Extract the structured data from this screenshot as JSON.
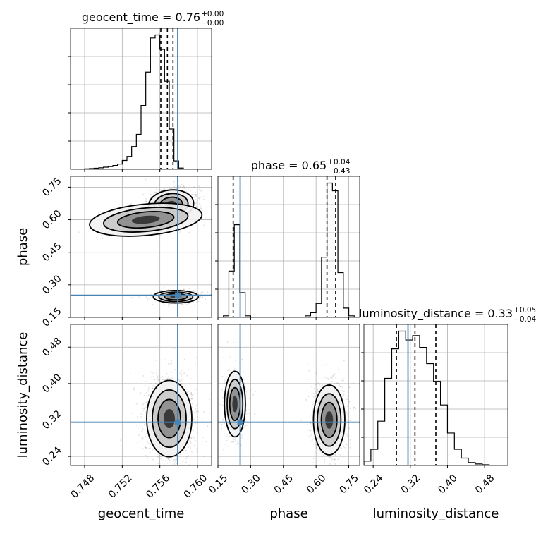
{
  "chart_data": {
    "type": "corner",
    "parameters": [
      "geocent_time",
      "phase",
      "luminosity_distance"
    ],
    "axes": {
      "geocent_time": {
        "label": "geocent_time",
        "range": [
          0.7465,
          0.7615
        ],
        "ticks": [
          0.748,
          0.752,
          0.756,
          0.76
        ],
        "tick_labels": [
          "0.748",
          "0.752",
          "0.756",
          "0.760"
        ]
      },
      "phase": {
        "label": "phase",
        "range": [
          0.15,
          0.8
        ],
        "ticks": [
          0.15,
          0.3,
          0.45,
          0.6,
          0.75
        ],
        "tick_labels": [
          "0.15",
          "0.30",
          "0.45",
          "0.60",
          "0.75"
        ]
      },
      "luminosity_distance": {
        "label": "luminosity_distance",
        "range": [
          0.22,
          0.53
        ],
        "ticks": [
          0.24,
          0.32,
          0.4,
          0.48
        ],
        "tick_labels": [
          "0.24",
          "0.32",
          "0.40",
          "0.48"
        ]
      }
    },
    "titles": [
      {
        "param": "geocent_time",
        "prefix": "geocent_time = 0.76",
        "plus": "+0.00",
        "minus": "−0.00"
      },
      {
        "param": "phase",
        "prefix": "phase = 0.65",
        "plus": "+0.04",
        "minus": "−0.43"
      },
      {
        "param": "luminosity_distance",
        "prefix": "luminosity_distance = 0.33",
        "plus": "+0.05",
        "minus": "−0.04"
      }
    ],
    "truths": {
      "geocent_time": 0.7579,
      "phase": 0.252,
      "luminosity_distance": 0.315
    },
    "quantiles": {
      "geocent_time": [
        0.7561,
        0.7568,
        0.7574
      ],
      "phase": [
        0.22,
        0.65,
        0.69
      ],
      "luminosity_distance": [
        0.29,
        0.33,
        0.375
      ]
    },
    "histograms": {
      "geocent_time": {
        "edges": [
          0.747,
          0.7475,
          0.748,
          0.7485,
          0.749,
          0.7495,
          0.75,
          0.7505,
          0.751,
          0.7515,
          0.752,
          0.7525,
          0.753,
          0.7535,
          0.754,
          0.7545,
          0.755,
          0.7555,
          0.756,
          0.7565,
          0.757,
          0.7575,
          0.758,
          0.7585,
          0.759,
          0.7595,
          0.76,
          0.7605,
          0.761
        ],
        "counts": [
          0,
          2,
          3,
          5,
          7,
          10,
          14,
          18,
          25,
          34,
          58,
          85,
          150,
          230,
          420,
          640,
          865,
          885,
          790,
          580,
          265,
          55,
          8,
          0,
          0,
          0,
          0,
          0
        ]
      },
      "phase": {
        "edges": [
          0.15,
          0.175,
          0.2,
          0.225,
          0.25,
          0.275,
          0.3,
          0.325,
          0.35,
          0.375,
          0.4,
          0.425,
          0.45,
          0.475,
          0.5,
          0.525,
          0.55,
          0.575,
          0.6,
          0.625,
          0.65,
          0.675,
          0.7,
          0.725,
          0.75,
          0.775,
          0.8
        ],
        "counts": [
          0,
          10,
          300,
          600,
          160,
          10,
          0,
          0,
          0,
          0,
          0,
          0,
          0,
          0,
          0,
          0,
          10,
          30,
          90,
          390,
          870,
          820,
          290,
          60,
          10,
          0
        ]
      },
      "luminosity_distance": {
        "edges": [
          0.22,
          0.235,
          0.25,
          0.265,
          0.28,
          0.295,
          0.31,
          0.325,
          0.34,
          0.355,
          0.37,
          0.385,
          0.4,
          0.415,
          0.43,
          0.445,
          0.46,
          0.475,
          0.49,
          0.505,
          0.52,
          0.53
        ],
        "counts": [
          30,
          110,
          300,
          590,
          790,
          910,
          850,
          880,
          800,
          690,
          570,
          410,
          220,
          110,
          50,
          20,
          10,
          5,
          2,
          0,
          0
        ]
      }
    },
    "density_2d": [
      {
        "x": "geocent_time",
        "y": "phase",
        "modes": [
          {
            "cx": 0.7572,
            "cy": 0.67,
            "sx": 0.001,
            "sy": 0.028,
            "rot": 0.15,
            "weight": 1.0
          },
          {
            "cx": 0.7577,
            "cy": 0.245,
            "sx": 0.001,
            "sy": 0.012,
            "rot": 0.0,
            "weight": 0.55
          },
          {
            "cx": 0.7545,
            "cy": 0.6,
            "sx": 0.0025,
            "sy": 0.03,
            "rot": 0.35,
            "weight": 0.12
          }
        ]
      },
      {
        "x": "geocent_time",
        "y": "luminosity_distance",
        "modes": [
          {
            "cx": 0.757,
            "cy": 0.323,
            "sx": 0.001,
            "sy": 0.035,
            "rot": 0.0,
            "weight": 1.0
          }
        ]
      },
      {
        "x": "phase",
        "y": "luminosity_distance",
        "modes": [
          {
            "cx": 0.228,
            "cy": 0.355,
            "sx": 0.02,
            "sy": 0.03,
            "rot": 0.0,
            "weight": 0.6
          },
          {
            "cx": 0.66,
            "cy": 0.32,
            "sx": 0.03,
            "sy": 0.032,
            "rot": 0.0,
            "weight": 1.0
          }
        ]
      }
    ],
    "grid": true,
    "colors": {
      "truth": "#4682b4",
      "contour": "#000000",
      "hist": "#000000",
      "grid": "#b0b0b0"
    }
  }
}
